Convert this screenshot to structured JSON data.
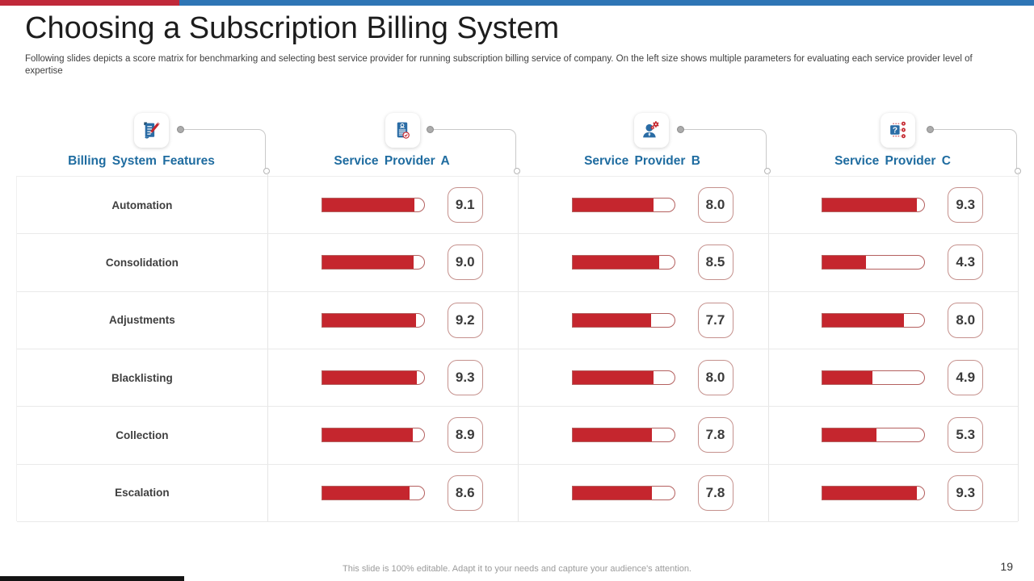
{
  "accent": {
    "top_red": "#C0293A",
    "top_blue": "#2E75B5",
    "bar_red": "#C5262E",
    "header_blue": "#1F6CA0"
  },
  "header": {
    "title": "Choosing a Subscription Billing System",
    "subtitle": "Following slides depicts a score matrix for benchmarking and selecting best service provider for running subscription billing service of company. On the left size shows multiple parameters for evaluating each service provider level of expertise"
  },
  "columns": [
    {
      "label": "Billing System Features",
      "icon": "document-edit-icon"
    },
    {
      "label": "Service Provider A",
      "icon": "clipboard-check-icon"
    },
    {
      "label": "Service Provider B",
      "icon": "person-gears-icon"
    },
    {
      "label": "Service Provider C",
      "icon": "question-options-icon"
    }
  ],
  "chart_data": {
    "type": "table",
    "title": "Choosing a Subscription Billing System",
    "categories": [
      "Automation",
      "Consolidation",
      "Adjustments",
      "Blacklisting",
      "Collection",
      "Escalation"
    ],
    "series": [
      {
        "name": "Service Provider A",
        "values": [
          9.1,
          9.0,
          9.2,
          9.3,
          8.9,
          8.6
        ]
      },
      {
        "name": "Service Provider B",
        "values": [
          8.0,
          8.5,
          7.7,
          8.0,
          7.8,
          7.8
        ]
      },
      {
        "name": "Service Provider C",
        "values": [
          9.3,
          4.3,
          8.0,
          4.9,
          5.3,
          9.3
        ]
      }
    ],
    "value_range": [
      0,
      10
    ],
    "bar_style": "red horizontal fill in white rounded-end track, score in rounded box"
  },
  "footer": {
    "note": "This slide is 100% editable. Adapt it to your needs and capture your audience's attention.",
    "page_number": "19"
  }
}
